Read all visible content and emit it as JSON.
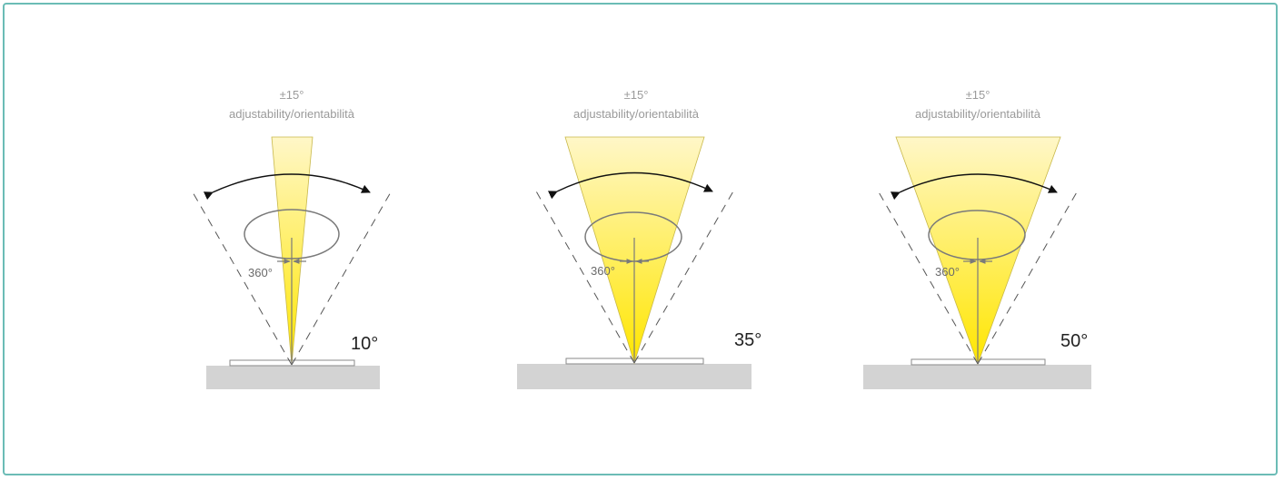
{
  "colors": {
    "frame": "#6bbcb6",
    "beam_top": "#fff7c8",
    "beam_bottom": "#ffe600",
    "surface": "#d3d3d3",
    "outline": "#8a8a8a"
  },
  "diagrams": [
    {
      "adjust_value": "±15°",
      "adjust_label": "adjustability/orientabilità",
      "rotation_label": "360°",
      "beam_angle": "10°"
    },
    {
      "adjust_value": "±15°",
      "adjust_label": "adjustability/orientabilità",
      "rotation_label": "360°",
      "beam_angle": "35°"
    },
    {
      "adjust_value": "±15°",
      "adjust_label": "adjustability/orientabilità",
      "rotation_label": "360°",
      "beam_angle": "50°"
    }
  ]
}
